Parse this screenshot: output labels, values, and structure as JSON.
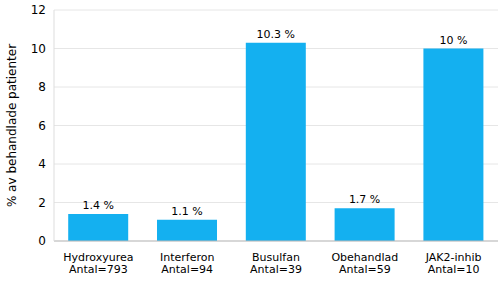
{
  "chart_data": {
    "type": "bar",
    "y_label": "% av behandlade patienter",
    "categories": [
      "Hydroxyurea\nAntal=793",
      "Interferon\nAntal=94",
      "Busulfan\nAntal=39",
      "Obehandlad\nAntal=59",
      "JAK2-inhib\nAntal=10"
    ],
    "values": [
      1.4,
      1.1,
      10.3,
      1.7,
      10
    ],
    "value_labels": [
      "1.4 %",
      "1.1 %",
      "10.3 %",
      "1.7 %",
      "10 %"
    ],
    "data_labels": true,
    "color": "#14b0f0",
    "ylim": [
      0,
      12
    ],
    "yticks": [
      0,
      2,
      4,
      6,
      8,
      10,
      12
    ],
    "grid": true
  }
}
